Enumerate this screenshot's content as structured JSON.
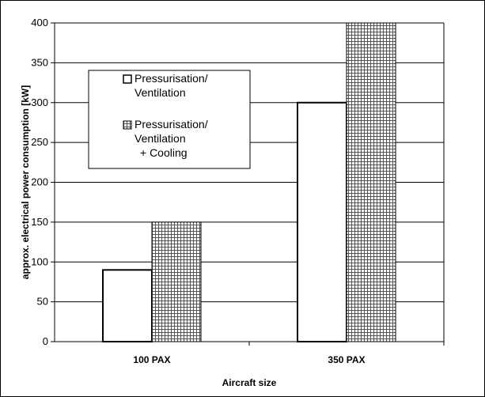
{
  "chart_data": {
    "type": "bar",
    "categories": [
      "100 PAX",
      "350 PAX"
    ],
    "series": [
      {
        "name": "Pressurisation/ Ventilation",
        "values": [
          90,
          300
        ],
        "pattern": "solid",
        "color": "#ffffff"
      },
      {
        "name": "Pressurisation/ Ventilation + Cooling",
        "values": [
          150,
          400
        ],
        "pattern": "grid",
        "color": "#ffffff"
      }
    ],
    "legend_lines": [
      [
        "Pressurisation/",
        "Ventilation"
      ],
      [
        "Pressurisation/",
        "Ventilation",
        "+ Cooling"
      ]
    ],
    "xlabel": "Aircraft size",
    "ylabel": "approx. electrical power consumption [kW]",
    "ylim": [
      0,
      400
    ],
    "yticks": [
      0,
      50,
      100,
      150,
      200,
      250,
      300,
      350,
      400
    ],
    "grid": true,
    "legend_position": "upper-left"
  }
}
